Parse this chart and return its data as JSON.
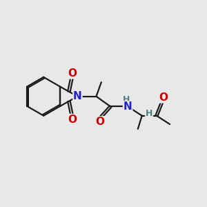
{
  "background_color": "#e8e8e8",
  "bond_color": "#1a1a1a",
  "bond_width": 1.6,
  "atom_colors": {
    "O": "#cc0000",
    "N": "#2222cc",
    "H": "#4a8080",
    "C": "#1a1a1a"
  },
  "font_size_atom": 11,
  "font_size_H": 9,
  "dbl_off": 0.055
}
